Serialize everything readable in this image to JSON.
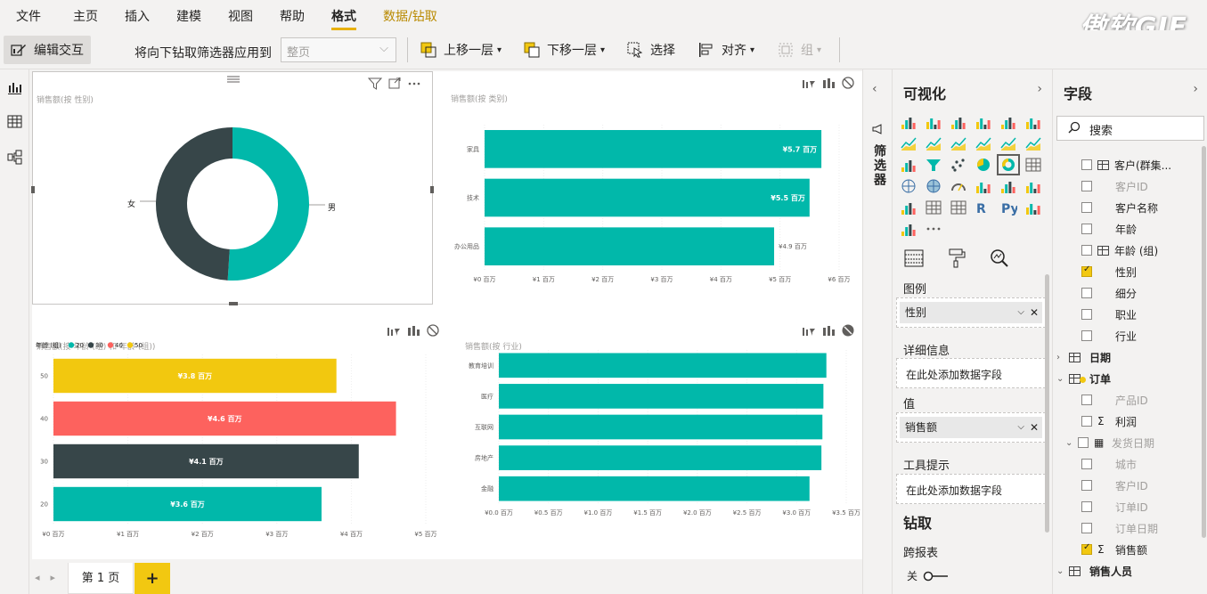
{
  "menubar": {
    "tabs": [
      "文件",
      "主页",
      "插入",
      "建模",
      "视图",
      "帮助",
      "格式",
      "数据/钻取"
    ],
    "active_tab": "格式",
    "watermark": "傲软GIF"
  },
  "toolbar": {
    "edit_interaction": "编辑交互",
    "drill_filter_label": "将向下钻取筛选器应用到",
    "drill_filter_value": "整页",
    "bring_forward": "上移一层",
    "send_backward": "下移一层",
    "select": "选择",
    "align": "对齐",
    "group": "组"
  },
  "visuals": {
    "donut": {
      "title": "销售额(按 性别)",
      "labels": {
        "female": "女",
        "male": "男"
      }
    },
    "category_bar": {
      "title": "销售额(按 类别)"
    },
    "age_bar": {
      "title": "销售额(按 年龄 (组) 和 年龄 (组))",
      "legend_title": "年龄 (组)"
    },
    "industry_bar": {
      "title": "销售额(按 行业)"
    }
  },
  "colors": {
    "teal": "#01b8aa",
    "dark": "#374649",
    "red": "#fd625e",
    "yellow": "#f2c80f",
    "accent": "#e8b007"
  },
  "chart_data": [
    {
      "type": "pie",
      "title": "销售额(按 性别)",
      "categories": [
        "男",
        "女"
      ],
      "values": [
        51,
        49
      ],
      "colors": [
        "#01b8aa",
        "#374649"
      ]
    },
    {
      "type": "bar",
      "orientation": "horizontal",
      "title": "销售额(按 类别)",
      "categories": [
        "家具",
        "技术",
        "办公用品"
      ],
      "values": [
        5.7,
        5.5,
        4.9
      ],
      "data_labels": [
        "¥5.7 百万",
        "¥5.5 百万",
        "¥4.9 百万"
      ],
      "xlim": [
        0,
        6
      ],
      "x_ticks": [
        "¥0 百万",
        "¥1 百万",
        "¥2 百万",
        "¥3 百万",
        "¥4 百万",
        "¥5 百万",
        "¥6 百万"
      ]
    },
    {
      "type": "bar",
      "orientation": "horizontal",
      "title": "销售额(按 年龄 (组) 和 年龄 (组))",
      "legend_title": "年龄 (组)",
      "legend_placement": "top-left",
      "categories": [
        "50",
        "40",
        "30",
        "20"
      ],
      "values": [
        3.8,
        4.6,
        4.1,
        3.6
      ],
      "data_labels": [
        "¥3.8 百万",
        "¥4.6 百万",
        "¥4.1 百万",
        "¥3.6 百万"
      ],
      "legend": [
        {
          "name": "20",
          "color": "#01b8aa"
        },
        {
          "name": "30",
          "color": "#374649"
        },
        {
          "name": "40",
          "color": "#fd625e"
        },
        {
          "name": "50",
          "color": "#f2c80f"
        }
      ],
      "bar_colors": [
        "#f2c80f",
        "#fd625e",
        "#374649",
        "#01b8aa"
      ],
      "xlim": [
        0,
        5
      ],
      "x_ticks": [
        "¥0 百万",
        "¥1 百万",
        "¥2 百万",
        "¥3 百万",
        "¥4 百万",
        "¥5 百万"
      ]
    },
    {
      "type": "bar",
      "orientation": "horizontal",
      "title": "销售额(按 行业)",
      "categories": [
        "教育培训",
        "医疗",
        "互联网",
        "房地产",
        "金融"
      ],
      "values": [
        3.3,
        3.27,
        3.26,
        3.25,
        3.13
      ],
      "xlim": [
        0,
        3.5
      ],
      "x_ticks": [
        "¥0.0 百万",
        "¥0.5 百万",
        "¥1.0 百万",
        "¥1.5 百万",
        "¥2.0 百万",
        "¥2.5 百万",
        "¥3.0 百万",
        "¥3.5 百万"
      ]
    }
  ],
  "pages": {
    "current": "第 1 页",
    "add": "+"
  },
  "filters": {
    "label": "筛选器"
  },
  "vizpane": {
    "title": "可视化",
    "legend_label": "图例",
    "legend_field": "性别",
    "details_label": "详细信息",
    "details_placeholder": "在此处添加数据字段",
    "values_label": "值",
    "values_field": "销售额",
    "tooltips_label": "工具提示",
    "tooltips_placeholder": "在此处添加数据字段",
    "drill_title": "钻取",
    "cross_report_label": "跨报表",
    "cross_report_state": "关"
  },
  "fields": {
    "title": "字段",
    "search_placeholder": "搜索",
    "items": [
      {
        "label": "客户(群集...",
        "type": "table",
        "checked": false,
        "grey": false,
        "indent": 2
      },
      {
        "label": "客户ID",
        "type": "field",
        "checked": false,
        "grey": true,
        "indent": 2
      },
      {
        "label": "客户名称",
        "type": "field",
        "checked": false,
        "grey": false,
        "indent": 2
      },
      {
        "label": "年龄",
        "type": "field",
        "checked": false,
        "grey": false,
        "indent": 2
      },
      {
        "label": "年龄 (组)",
        "type": "table",
        "checked": false,
        "grey": false,
        "indent": 2
      },
      {
        "label": "性别",
        "type": "field",
        "checked": true,
        "grey": false,
        "indent": 2
      },
      {
        "label": "细分",
        "type": "field",
        "checked": false,
        "grey": false,
        "indent": 2
      },
      {
        "label": "职业",
        "type": "field",
        "checked": false,
        "grey": false,
        "indent": 2
      },
      {
        "label": "行业",
        "type": "field",
        "checked": false,
        "grey": false,
        "indent": 2
      },
      {
        "label": "日期",
        "type": "group",
        "checked": false,
        "grey": false,
        "indent": 0,
        "expanded": false
      },
      {
        "label": "订单",
        "type": "group",
        "checked": true,
        "grey": false,
        "indent": 0,
        "expanded": true
      },
      {
        "label": "产品ID",
        "type": "field",
        "checked": false,
        "grey": true,
        "indent": 2
      },
      {
        "label": "利润",
        "type": "sigma",
        "checked": false,
        "grey": false,
        "indent": 2
      },
      {
        "label": "发货日期",
        "type": "calendar",
        "checked": false,
        "grey": true,
        "indent": 1,
        "expanded": true
      },
      {
        "label": "城市",
        "type": "field",
        "checked": false,
        "grey": true,
        "indent": 2
      },
      {
        "label": "客户ID",
        "type": "field",
        "checked": false,
        "grey": true,
        "indent": 2
      },
      {
        "label": "订单ID",
        "type": "field",
        "checked": false,
        "grey": true,
        "indent": 2
      },
      {
        "label": "订单日期",
        "type": "field",
        "checked": false,
        "grey": true,
        "indent": 2
      },
      {
        "label": "销售额",
        "type": "sigma",
        "checked": true,
        "grey": false,
        "indent": 2
      },
      {
        "label": "销售人员",
        "type": "group",
        "checked": false,
        "grey": false,
        "indent": 0,
        "expanded": true
      }
    ]
  }
}
